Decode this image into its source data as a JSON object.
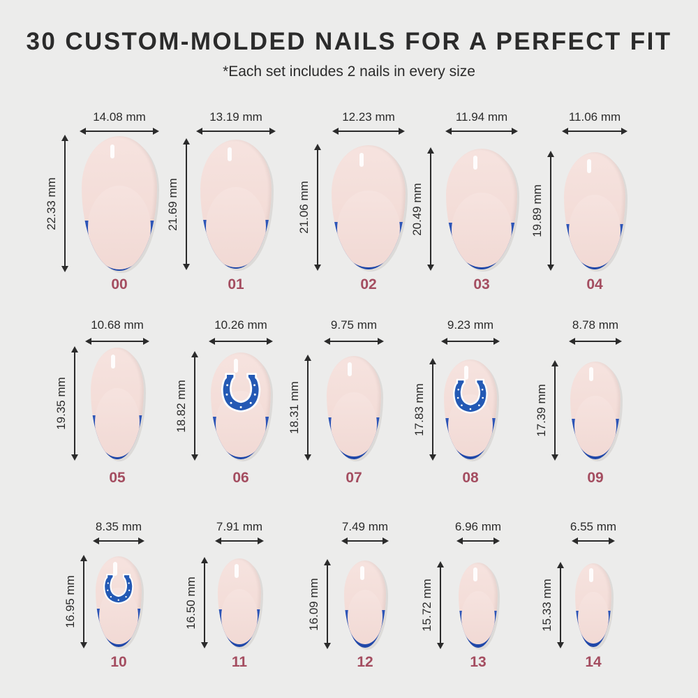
{
  "header": {
    "title": "30 CUSTOM-MOLDED NAILS FOR A PERFECT FIT",
    "subtitle": "*Each set includes 2 nails in every size"
  },
  "colors": {
    "background": "#ececeb",
    "nail_base": "#f3dcd7",
    "tip_blue": "#2450b0",
    "size_number": "#a44d60",
    "text": "#2b2b2b"
  },
  "nails": [
    {
      "size": "00",
      "width": "14.08 mm",
      "length": "22.33 mm",
      "logo": false
    },
    {
      "size": "01",
      "width": "13.19 mm",
      "length": "21.69 mm",
      "logo": false
    },
    {
      "size": "02",
      "width": "12.23 mm",
      "length": "21.06 mm",
      "logo": false
    },
    {
      "size": "03",
      "width": "11.94 mm",
      "length": "20.49 mm",
      "logo": false
    },
    {
      "size": "04",
      "width": "11.06 mm",
      "length": "19.89 mm",
      "logo": false
    },
    {
      "size": "05",
      "width": "10.68 mm",
      "length": "19.35 mm",
      "logo": false
    },
    {
      "size": "06",
      "width": "10.26 mm",
      "length": "18.82 mm",
      "logo": true
    },
    {
      "size": "07",
      "width": "9.75 mm",
      "length": "18.31 mm",
      "logo": false
    },
    {
      "size": "08",
      "width": "9.23 mm",
      "length": "17.83 mm",
      "logo": true
    },
    {
      "size": "09",
      "width": "8.78 mm",
      "length": "17.39 mm",
      "logo": false
    },
    {
      "size": "10",
      "width": "8.35 mm",
      "length": "16.95 mm",
      "logo": true
    },
    {
      "size": "11",
      "width": "7.91 mm",
      "length": "16.50 mm",
      "logo": false
    },
    {
      "size": "12",
      "width": "7.49 mm",
      "length": "16.09 mm",
      "logo": false
    },
    {
      "size": "13",
      "width": "6.96 mm",
      "length": "15.72 mm",
      "logo": false
    },
    {
      "size": "14",
      "width": "6.55 mm",
      "length": "15.33 mm",
      "logo": false
    }
  ]
}
